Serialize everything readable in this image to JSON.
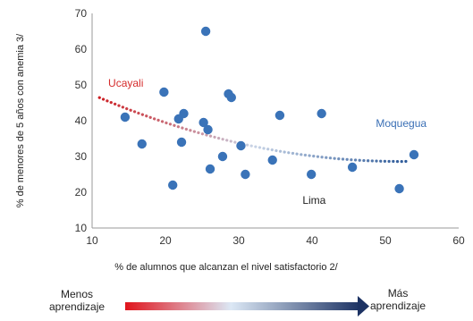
{
  "chart_data": {
    "type": "scatter",
    "xlabel": "% de alumnos que alcanzan  el nivel satisfactorio 2/",
    "ylabel": "% de menores de 5 años con anemia 3/",
    "xlim": [
      10,
      60
    ],
    "ylim": [
      10,
      70
    ],
    "xticks": [
      10,
      20,
      30,
      40,
      50,
      60
    ],
    "yticks": [
      10,
      20,
      30,
      40,
      50,
      60,
      70
    ],
    "grid": false,
    "points": [
      {
        "x": 14.5,
        "y": 41
      },
      {
        "x": 16.8,
        "y": 33.5
      },
      {
        "x": 19.8,
        "y": 48
      },
      {
        "x": 21.0,
        "y": 22
      },
      {
        "x": 21.8,
        "y": 40.5
      },
      {
        "x": 22.2,
        "y": 34
      },
      {
        "x": 22.5,
        "y": 42
      },
      {
        "x": 25.2,
        "y": 39.5
      },
      {
        "x": 25.5,
        "y": 65
      },
      {
        "x": 25.8,
        "y": 37.5
      },
      {
        "x": 26.1,
        "y": 26.5
      },
      {
        "x": 27.8,
        "y": 30
      },
      {
        "x": 28.6,
        "y": 47.5
      },
      {
        "x": 29.0,
        "y": 46.5
      },
      {
        "x": 30.3,
        "y": 33
      },
      {
        "x": 30.9,
        "y": 25
      },
      {
        "x": 34.6,
        "y": 29
      },
      {
        "x": 35.6,
        "y": 41.5
      },
      {
        "x": 39.9,
        "y": 25
      },
      {
        "x": 41.3,
        "y": 42
      },
      {
        "x": 45.5,
        "y": 27
      },
      {
        "x": 51.9,
        "y": 21
      },
      {
        "x": 53.9,
        "y": 30.5
      }
    ],
    "trendline": {
      "x": [
        11,
        53
      ],
      "style": "dotted-gradient",
      "coef": [
        57.3,
        -1.103,
        0.0106
      ]
    },
    "annotations": [
      {
        "text": "Ucayali",
        "x": 12.2,
        "y": 49.5,
        "color": "#d52b2b"
      },
      {
        "text": "Moqueguа",
        "x": 48.7,
        "y": 38.2,
        "color": "#3a6fb5"
      },
      {
        "text": "Lima",
        "x": 38.7,
        "y": 16.7,
        "color": "#222222"
      }
    ],
    "colors": {
      "points": "#3a73b8",
      "trend_start": "#cc1d22",
      "trend_mid": "#b5c7e0",
      "trend_end": "#2d5a99",
      "axis": "#888888"
    }
  },
  "scale": {
    "left_label": "Menos\naprendizaje",
    "right_label": "Más\naprendizaje",
    "gradient_start": "#e0141c",
    "gradient_mid": "#dce8f5",
    "gradient_end": "#1c3263"
  }
}
